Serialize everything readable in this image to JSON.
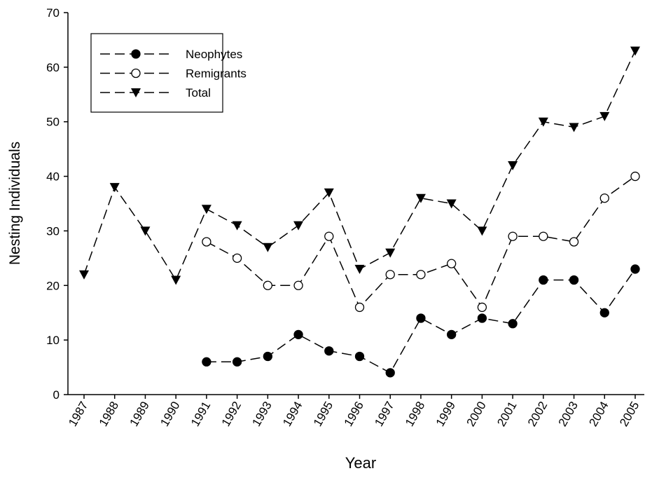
{
  "chart_data": {
    "type": "line",
    "xlabel": "Year",
    "ylabel": "Nesting Individuals",
    "categories": [
      "1987",
      "1988",
      "1989",
      "1990",
      "1991",
      "1992",
      "1993",
      "1994",
      "1995",
      "1996",
      "1997",
      "1998",
      "1999",
      "2000",
      "2001",
      "2002",
      "2003",
      "2004",
      "2005"
    ],
    "series": [
      {
        "name": "Neophytes",
        "color": "#000000",
        "marker": "filled-circle",
        "values": [
          null,
          null,
          null,
          null,
          6,
          6,
          7,
          11,
          8,
          7,
          4,
          14,
          11,
          14,
          13,
          21,
          21,
          15,
          23
        ]
      },
      {
        "name": "Remigrants",
        "color": "#000000",
        "marker": "open-circle",
        "values": [
          null,
          null,
          null,
          null,
          28,
          25,
          20,
          20,
          29,
          16,
          22,
          22,
          24,
          16,
          29,
          29,
          28,
          36,
          40
        ]
      },
      {
        "name": "Total",
        "color": "#000000",
        "marker": "down-triangle",
        "values": [
          22,
          38,
          30,
          21,
          34,
          31,
          27,
          31,
          37,
          23,
          26,
          36,
          35,
          30,
          42,
          50,
          49,
          51,
          63
        ]
      }
    ],
    "ylim": [
      0,
      70
    ],
    "yticks": [
      0,
      10,
      20,
      30,
      40,
      50,
      60,
      70
    ],
    "line_style": "dashed",
    "legend": "upper left"
  }
}
